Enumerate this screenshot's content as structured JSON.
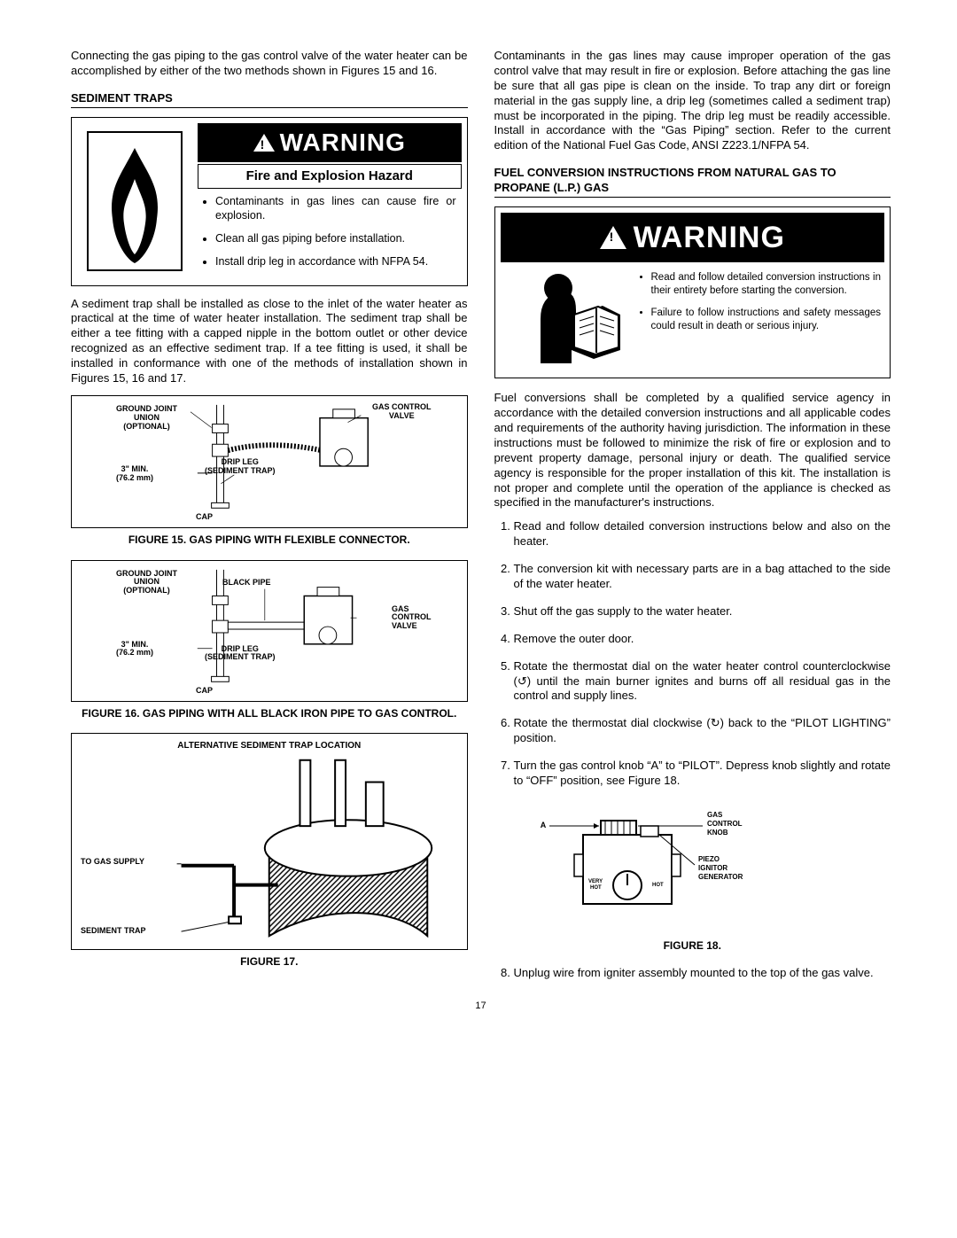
{
  "page_number": "17",
  "left": {
    "intro": "Connecting the gas piping to the gas control valve of the water heater can be accomplished by either of the two methods shown in Figures 15 and 16.",
    "section1_title": "SEDIMENT TRAPS",
    "warn": {
      "banner": "WARNING",
      "subtitle": "Fire and Explosion Hazard",
      "bullets": [
        "Contaminants in gas lines can cause fire or explosion.",
        "Clean all gas piping before installation.",
        "Install drip leg in accordance with NFPA 54."
      ]
    },
    "para_after_warn": "A sediment trap shall be installed as close to the inlet of the water heater as practical at the time of water heater installation. The sediment trap shall be either a tee fitting with a capped nipple in the bottom outlet or other device recognized as an effective sediment trap. If a tee fitting  is used, it shall be installed in conformance with one of the methods of installation shown in Figures 15, 16 and 17.",
    "fig15": {
      "caption": "FIGURE 15.  GAS PIPING WITH FLEXIBLE CONNECTOR.",
      "labels": {
        "gju": "GROUND JOINT\nUNION\n(OPTIONAL)",
        "gcv": "GAS CONTROL\nVALVE",
        "min": "3\" MIN.\n(76.2 mm)",
        "drip": "DRIP LEG\n(SEDIMENT TRAP)",
        "cap": "CAP"
      }
    },
    "fig16": {
      "caption": "FIGURE 16.  GAS PIPING WITH ALL BLACK IRON PIPE TO GAS CONTROL.",
      "labels": {
        "gju": "GROUND JOINT\nUNION\n(OPTIONAL)",
        "black": "BLACK PIPE",
        "gcv": "GAS\nCONTROL\nVALVE",
        "min": "3\" MIN.\n(76.2 mm)",
        "drip": "DRIP LEG\n(SEDIMENT TRAP)",
        "cap": "CAP"
      }
    },
    "fig17": {
      "caption": "FIGURE 17.",
      "title": "ALTERNATIVE SEDIMENT TRAP LOCATION",
      "labels": {
        "togas": "TO GAS SUPPLY",
        "sed": "SEDIMENT TRAP"
      }
    }
  },
  "right": {
    "intro": "Contaminants in the gas lines may cause improper operation of the gas control valve that may result in fire or explosion.  Before attaching the gas line be sure that all gas pipe is clean on the inside. To trap any dirt or foreign material in the gas supply line, a drip leg (sometimes called a sediment trap) must be incorporated in the piping. The drip leg must be readily accessible. Install in accordance with the “Gas Piping” section. Refer to the current edition of the National Fuel Gas Code, ANSI Z223.1/NFPA 54.",
    "section2_title": "FUEL CONVERSION INSTRUCTIONS FROM NATURAL GAS TO PROPANE (L.P.) GAS",
    "warn": {
      "banner": "WARNING",
      "bullets": [
        "Read and follow detailed conversion instructions in their entirety before starting the conversion.",
        "Failure to follow instructions and safety messages could result in death or serious injury."
      ]
    },
    "para_after_warn": "Fuel conversions shall be completed by a qualified service agency in accordance with the detailed conversion instructions and all applicable codes and requirements of the authority having jurisdiction. The information in these instructions must be followed to minimize the risk of fire or explosion and to prevent property damage, personal injury or death. The qualified service agency is responsible for the proper installation of this kit. The installation is not proper and complete until the operation of the appliance is checked as specified in the manufacturer's instructions.",
    "steps": [
      "Read and follow detailed conversion instructions below and also on the heater.",
      "The conversion kit with necessary parts are in a bag attached to the side of the water heater.",
      "Shut off the gas supply to the water heater.",
      "Remove the outer door.",
      "Rotate the thermostat dial on the water heater control counterclockwise (↺) until the main burner ignites and burns off all residual gas in the control and supply lines.",
      "Rotate the thermostat dial clockwise (↻) back to the “PILOT LIGHTING” position.",
      "Turn the gas control knob “A” to “PILOT”. Depress knob slightly and rotate to “OFF” position, see Figure 18."
    ],
    "fig18": {
      "caption": "FIGURE 18.",
      "labels": {
        "a": "A",
        "knob": "GAS\nCONTROL\nKNOB",
        "piezo": "PIEZO\nIGNITOR\nGENERATOR",
        "veryhot": "VERY\nHOT",
        "hot": "HOT"
      }
    },
    "step8": "Unplug wire from igniter assembly mounted to the top of the gas valve."
  }
}
